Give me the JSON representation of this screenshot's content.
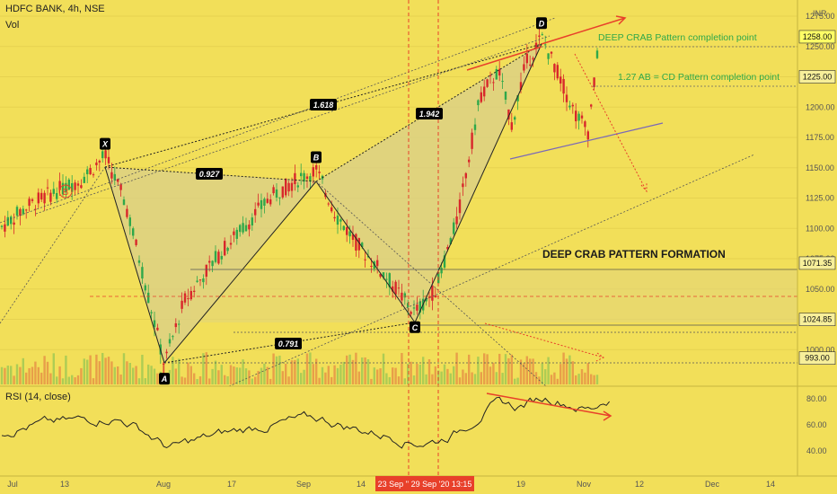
{
  "header": {
    "symbol_line": "HDFC BANK, 4h, NSE",
    "volume_label": "Vol",
    "currency": "INR"
  },
  "rsi_panel": {
    "label": "RSI (14, close)",
    "ticks": [
      "80.00",
      "60.00",
      "40.00"
    ]
  },
  "annotations": {
    "deep_crab_completion": "DEEP CRAB Pattern completion point",
    "ab_cd_completion": "1.27 AB = CD Pattern completion point",
    "formation_title": "DEEP CRAB PATTERN FORMATION"
  },
  "price_labels": [
    {
      "text": "1258.00",
      "style": "highlight"
    },
    {
      "text": "1225.00",
      "style": "box"
    },
    {
      "text": "1071.35",
      "style": "box"
    },
    {
      "text": "1024.85",
      "style": "box"
    },
    {
      "text": "993.00",
      "style": "box"
    }
  ],
  "colors": {
    "background": "#f2df59",
    "bull_candle": "#2fa84a",
    "bear_candle": "#d8272b",
    "trend_line": "#e8402a",
    "pattern_fill": "#d9cf8a",
    "label_bg": "#000000"
  },
  "chart_data": {
    "type": "candlestick",
    "y_axis": {
      "range": [
        975,
        1285
      ],
      "ticks": [
        1275,
        1250,
        1225,
        1200,
        1175,
        1150,
        1125,
        1100,
        1075,
        1050,
        1025,
        1000
      ]
    },
    "x_axis": {
      "ticks": [
        "Jul",
        "13",
        "Aug",
        "17",
        "Sep",
        "14",
        "19",
        "Nov",
        "12",
        "Dec",
        "14"
      ],
      "highlight_label": "23 Sep '' 29 Sep '20   13:15"
    },
    "pattern_points": [
      {
        "label": "X",
        "price": 1159
      },
      {
        "label": "A",
        "price": 986
      },
      {
        "label": "B",
        "price": 1148
      },
      {
        "label": "C",
        "price": 1030
      },
      {
        "label": "D",
        "price": 1260
      }
    ],
    "ratios": [
      "1.618",
      "0.927",
      "1.942",
      "0.791"
    ],
    "marker_label": "B",
    "horizontal_levels": [
      1258,
      1225,
      1071.35,
      1050,
      1024.85,
      993
    ]
  }
}
